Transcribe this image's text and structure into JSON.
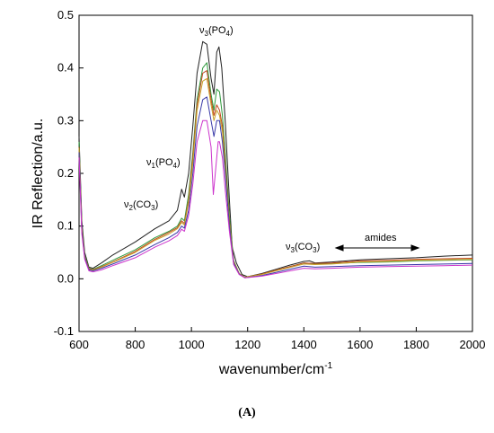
{
  "chart_data": {
    "type": "line",
    "xlabel": "wavenumber/cm",
    "xlabel_sup": "-1",
    "ylabel": "IR Reflection/a.u.",
    "xlim": [
      600,
      2000
    ],
    "ylim": [
      -0.1,
      0.5
    ],
    "x_ticks": [
      600,
      800,
      1000,
      1200,
      1400,
      1600,
      1800,
      2000
    ],
    "x_tick_labels": [
      "600",
      "800",
      "1000",
      "1200",
      "1400",
      "1600",
      "1800",
      "2000"
    ],
    "y_ticks": [
      -0.1,
      0.0,
      0.1,
      0.2,
      0.3,
      0.4,
      0.5
    ],
    "y_tick_labels": [
      "-0.1",
      "0.0",
      "0.1",
      "0.2",
      "0.3",
      "0.4",
      "0.5"
    ],
    "caption": "(A)",
    "annotations": {
      "nu3_po4": {
        "base": "ν",
        "sub1": "3",
        "mid": "(PO",
        "sub2": "4",
        "end": ")"
      },
      "nu1_po4": {
        "base": "ν",
        "sub1": "1",
        "mid": "(PO",
        "sub2": "4",
        "end": ")"
      },
      "nu2_co3": {
        "base": "ν",
        "sub1": "2",
        "mid": "(CO",
        "sub2": "3",
        "end": ")"
      },
      "nu3_co3": {
        "base": "ν",
        "sub1": "3",
        "mid": "(CO",
        "sub2": "3",
        "end": ")"
      },
      "amides": "amides"
    },
    "series": [
      {
        "color": "#222222",
        "points": [
          [
            600,
            0.27
          ],
          [
            610,
            0.11
          ],
          [
            620,
            0.05
          ],
          [
            635,
            0.022
          ],
          [
            650,
            0.02
          ],
          [
            680,
            0.03
          ],
          [
            720,
            0.045
          ],
          [
            800,
            0.07
          ],
          [
            870,
            0.095
          ],
          [
            920,
            0.11
          ],
          [
            950,
            0.13
          ],
          [
            965,
            0.17
          ],
          [
            975,
            0.155
          ],
          [
            990,
            0.2
          ],
          [
            1005,
            0.29
          ],
          [
            1020,
            0.39
          ],
          [
            1040,
            0.45
          ],
          [
            1055,
            0.445
          ],
          [
            1070,
            0.38
          ],
          [
            1080,
            0.35
          ],
          [
            1090,
            0.43
          ],
          [
            1098,
            0.44
          ],
          [
            1108,
            0.4
          ],
          [
            1120,
            0.3
          ],
          [
            1135,
            0.15
          ],
          [
            1145,
            0.06
          ],
          [
            1160,
            0.03
          ],
          [
            1180,
            0.008
          ],
          [
            1200,
            0.004
          ],
          [
            1250,
            0.01
          ],
          [
            1300,
            0.018
          ],
          [
            1350,
            0.026
          ],
          [
            1400,
            0.033
          ],
          [
            1420,
            0.034
          ],
          [
            1440,
            0.03
          ],
          [
            1500,
            0.032
          ],
          [
            1600,
            0.036
          ],
          [
            1700,
            0.038
          ],
          [
            1800,
            0.04
          ],
          [
            1900,
            0.043
          ],
          [
            2000,
            0.045
          ]
        ]
      },
      {
        "color": "#2e9a3c",
        "points": [
          [
            600,
            0.26
          ],
          [
            610,
            0.1
          ],
          [
            620,
            0.045
          ],
          [
            635,
            0.02
          ],
          [
            650,
            0.018
          ],
          [
            680,
            0.025
          ],
          [
            720,
            0.035
          ],
          [
            800,
            0.055
          ],
          [
            870,
            0.078
          ],
          [
            920,
            0.09
          ],
          [
            950,
            0.1
          ],
          [
            965,
            0.115
          ],
          [
            975,
            0.11
          ],
          [
            990,
            0.16
          ],
          [
            1005,
            0.24
          ],
          [
            1020,
            0.34
          ],
          [
            1040,
            0.4
          ],
          [
            1055,
            0.41
          ],
          [
            1070,
            0.35
          ],
          [
            1080,
            0.32
          ],
          [
            1090,
            0.36
          ],
          [
            1100,
            0.355
          ],
          [
            1110,
            0.31
          ],
          [
            1120,
            0.24
          ],
          [
            1135,
            0.12
          ],
          [
            1150,
            0.035
          ],
          [
            1170,
            0.01
          ],
          [
            1190,
            0.003
          ],
          [
            1250,
            0.009
          ],
          [
            1300,
            0.016
          ],
          [
            1400,
            0.03
          ],
          [
            1440,
            0.028
          ],
          [
            1500,
            0.029
          ],
          [
            1600,
            0.031
          ],
          [
            1700,
            0.032
          ],
          [
            1800,
            0.034
          ],
          [
            1900,
            0.035
          ],
          [
            2000,
            0.036
          ]
        ]
      },
      {
        "color": "#c1461e",
        "points": [
          [
            600,
            0.25
          ],
          [
            610,
            0.095
          ],
          [
            620,
            0.042
          ],
          [
            635,
            0.019
          ],
          [
            650,
            0.017
          ],
          [
            680,
            0.023
          ],
          [
            720,
            0.032
          ],
          [
            800,
            0.052
          ],
          [
            870,
            0.075
          ],
          [
            920,
            0.088
          ],
          [
            950,
            0.097
          ],
          [
            965,
            0.11
          ],
          [
            975,
            0.105
          ],
          [
            990,
            0.15
          ],
          [
            1005,
            0.23
          ],
          [
            1020,
            0.33
          ],
          [
            1040,
            0.39
          ],
          [
            1055,
            0.395
          ],
          [
            1070,
            0.34
          ],
          [
            1080,
            0.31
          ],
          [
            1090,
            0.33
          ],
          [
            1100,
            0.32
          ],
          [
            1110,
            0.29
          ],
          [
            1120,
            0.22
          ],
          [
            1135,
            0.11
          ],
          [
            1150,
            0.033
          ],
          [
            1170,
            0.01
          ],
          [
            1190,
            0.003
          ],
          [
            1250,
            0.009
          ],
          [
            1300,
            0.016
          ],
          [
            1400,
            0.03
          ],
          [
            1440,
            0.029
          ],
          [
            1500,
            0.03
          ],
          [
            1600,
            0.034
          ],
          [
            1700,
            0.035
          ],
          [
            1800,
            0.037
          ],
          [
            1900,
            0.038
          ],
          [
            2000,
            0.039
          ]
        ]
      },
      {
        "color": "#c8a12a",
        "points": [
          [
            600,
            0.248
          ],
          [
            610,
            0.094
          ],
          [
            620,
            0.041
          ],
          [
            635,
            0.018
          ],
          [
            650,
            0.016
          ],
          [
            680,
            0.022
          ],
          [
            720,
            0.031
          ],
          [
            800,
            0.05
          ],
          [
            870,
            0.073
          ],
          [
            920,
            0.085
          ],
          [
            950,
            0.095
          ],
          [
            965,
            0.107
          ],
          [
            975,
            0.102
          ],
          [
            990,
            0.145
          ],
          [
            1005,
            0.22
          ],
          [
            1020,
            0.32
          ],
          [
            1040,
            0.375
          ],
          [
            1055,
            0.38
          ],
          [
            1070,
            0.33
          ],
          [
            1080,
            0.3
          ],
          [
            1090,
            0.32
          ],
          [
            1100,
            0.31
          ],
          [
            1110,
            0.28
          ],
          [
            1120,
            0.21
          ],
          [
            1135,
            0.105
          ],
          [
            1150,
            0.032
          ],
          [
            1170,
            0.01
          ],
          [
            1190,
            0.003
          ],
          [
            1250,
            0.008
          ],
          [
            1300,
            0.015
          ],
          [
            1400,
            0.028
          ],
          [
            1440,
            0.027
          ],
          [
            1500,
            0.028
          ],
          [
            1600,
            0.032
          ],
          [
            1700,
            0.033
          ],
          [
            1800,
            0.035
          ],
          [
            1900,
            0.036
          ],
          [
            2000,
            0.037
          ]
        ]
      },
      {
        "color": "#3a3aa8",
        "points": [
          [
            600,
            0.24
          ],
          [
            610,
            0.09
          ],
          [
            620,
            0.04
          ],
          [
            635,
            0.017
          ],
          [
            650,
            0.015
          ],
          [
            680,
            0.02
          ],
          [
            720,
            0.028
          ],
          [
            800,
            0.045
          ],
          [
            870,
            0.065
          ],
          [
            920,
            0.078
          ],
          [
            950,
            0.088
          ],
          [
            965,
            0.1
          ],
          [
            975,
            0.096
          ],
          [
            990,
            0.13
          ],
          [
            1005,
            0.2
          ],
          [
            1020,
            0.29
          ],
          [
            1040,
            0.34
          ],
          [
            1055,
            0.345
          ],
          [
            1070,
            0.3
          ],
          [
            1080,
            0.27
          ],
          [
            1090,
            0.3
          ],
          [
            1100,
            0.3
          ],
          [
            1110,
            0.26
          ],
          [
            1120,
            0.2
          ],
          [
            1135,
            0.1
          ],
          [
            1150,
            0.03
          ],
          [
            1170,
            0.009
          ],
          [
            1190,
            0.002
          ],
          [
            1250,
            0.006
          ],
          [
            1300,
            0.012
          ],
          [
            1400,
            0.024
          ],
          [
            1440,
            0.022
          ],
          [
            1500,
            0.023
          ],
          [
            1600,
            0.025
          ],
          [
            1700,
            0.026
          ],
          [
            1800,
            0.027
          ],
          [
            1900,
            0.028
          ],
          [
            2000,
            0.029
          ]
        ]
      },
      {
        "color": "#cc33cc",
        "points": [
          [
            600,
            0.23
          ],
          [
            610,
            0.085
          ],
          [
            620,
            0.037
          ],
          [
            635,
            0.015
          ],
          [
            650,
            0.013
          ],
          [
            680,
            0.017
          ],
          [
            720,
            0.025
          ],
          [
            800,
            0.04
          ],
          [
            870,
            0.06
          ],
          [
            920,
            0.072
          ],
          [
            950,
            0.082
          ],
          [
            965,
            0.094
          ],
          [
            975,
            0.09
          ],
          [
            990,
            0.12
          ],
          [
            1005,
            0.18
          ],
          [
            1020,
            0.26
          ],
          [
            1040,
            0.3
          ],
          [
            1055,
            0.3
          ],
          [
            1070,
            0.25
          ],
          [
            1078,
            0.16
          ],
          [
            1085,
            0.2
          ],
          [
            1095,
            0.26
          ],
          [
            1100,
            0.26
          ],
          [
            1110,
            0.23
          ],
          [
            1120,
            0.17
          ],
          [
            1135,
            0.09
          ],
          [
            1150,
            0.027
          ],
          [
            1170,
            0.008
          ],
          [
            1190,
            0.002
          ],
          [
            1250,
            0.005
          ],
          [
            1300,
            0.01
          ],
          [
            1400,
            0.02
          ],
          [
            1440,
            0.019
          ],
          [
            1500,
            0.02
          ],
          [
            1600,
            0.022
          ],
          [
            1700,
            0.023
          ],
          [
            1800,
            0.024
          ],
          [
            1900,
            0.025
          ],
          [
            2000,
            0.026
          ]
        ]
      }
    ]
  }
}
